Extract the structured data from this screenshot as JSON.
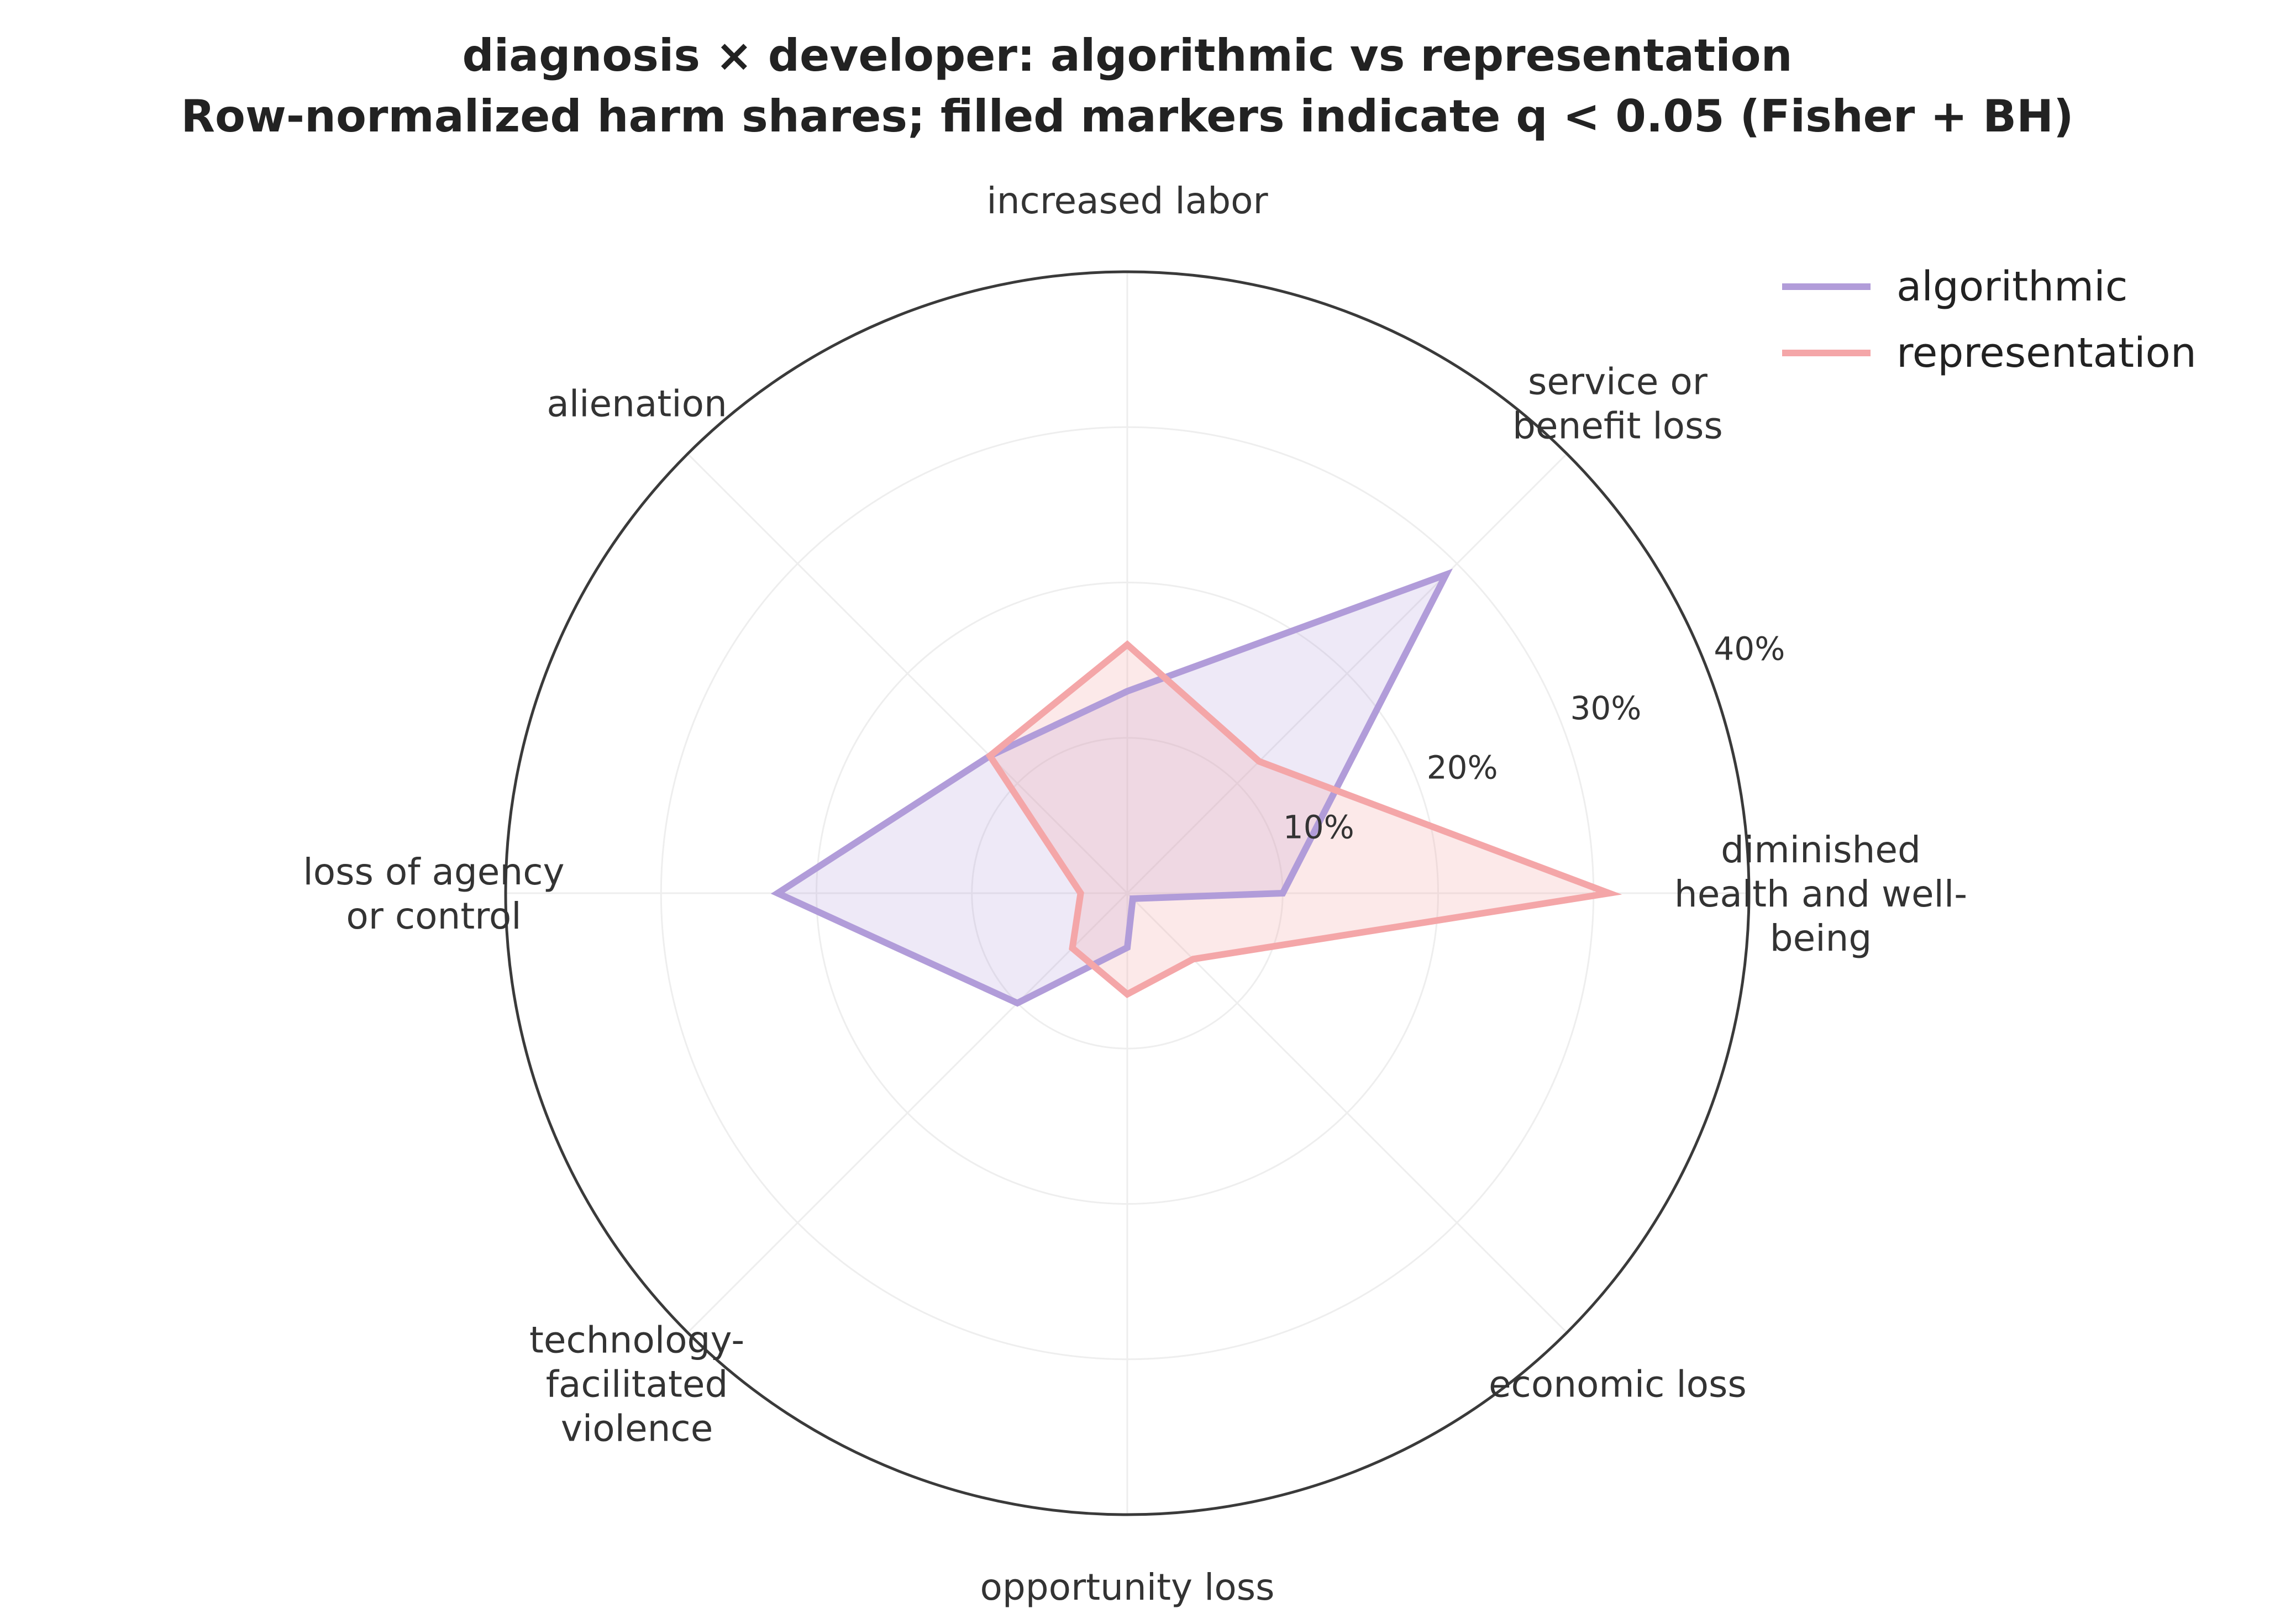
{
  "chart_data": {
    "type": "radar",
    "title_lines": [
      "diagnosis × developer: algorithmic vs representation",
      "Row-normalized harm shares; filled markers indicate q < 0.05 (Fisher + BH)"
    ],
    "categories": [
      "diminished health and well-being",
      "service or benefit loss",
      "increased labor",
      "alienation",
      "loss of agency or control",
      "technology-facilitated violence",
      "opportunity loss",
      "economic loss"
    ],
    "category_label_lines": [
      [
        "diminished",
        "health and well-",
        "being"
      ],
      [
        "service or",
        "benefit loss"
      ],
      [
        "increased labor"
      ],
      [
        "alienation"
      ],
      [
        "loss of agency",
        "or control"
      ],
      [
        "technology-",
        "facilitated",
        "violence"
      ],
      [
        "opportunity loss"
      ],
      [
        "economic loss"
      ]
    ],
    "r_ticks": [
      10,
      20,
      30,
      40
    ],
    "r_tick_labels": [
      "10%",
      "20%",
      "30%",
      "40%"
    ],
    "rlim": [
      0,
      40
    ],
    "value_unit": "%",
    "series": [
      {
        "name": "algorithmic",
        "color": "#b19cd9",
        "values": [
          10,
          29,
          13,
          12.5,
          22.5,
          10,
          3.5,
          0.5
        ]
      },
      {
        "name": "representation",
        "color": "#f4a6a8",
        "values": [
          31,
          12,
          16,
          12.5,
          3,
          5,
          6.5,
          6
        ]
      }
    ],
    "legend_position": "top-right",
    "grid": true
  }
}
